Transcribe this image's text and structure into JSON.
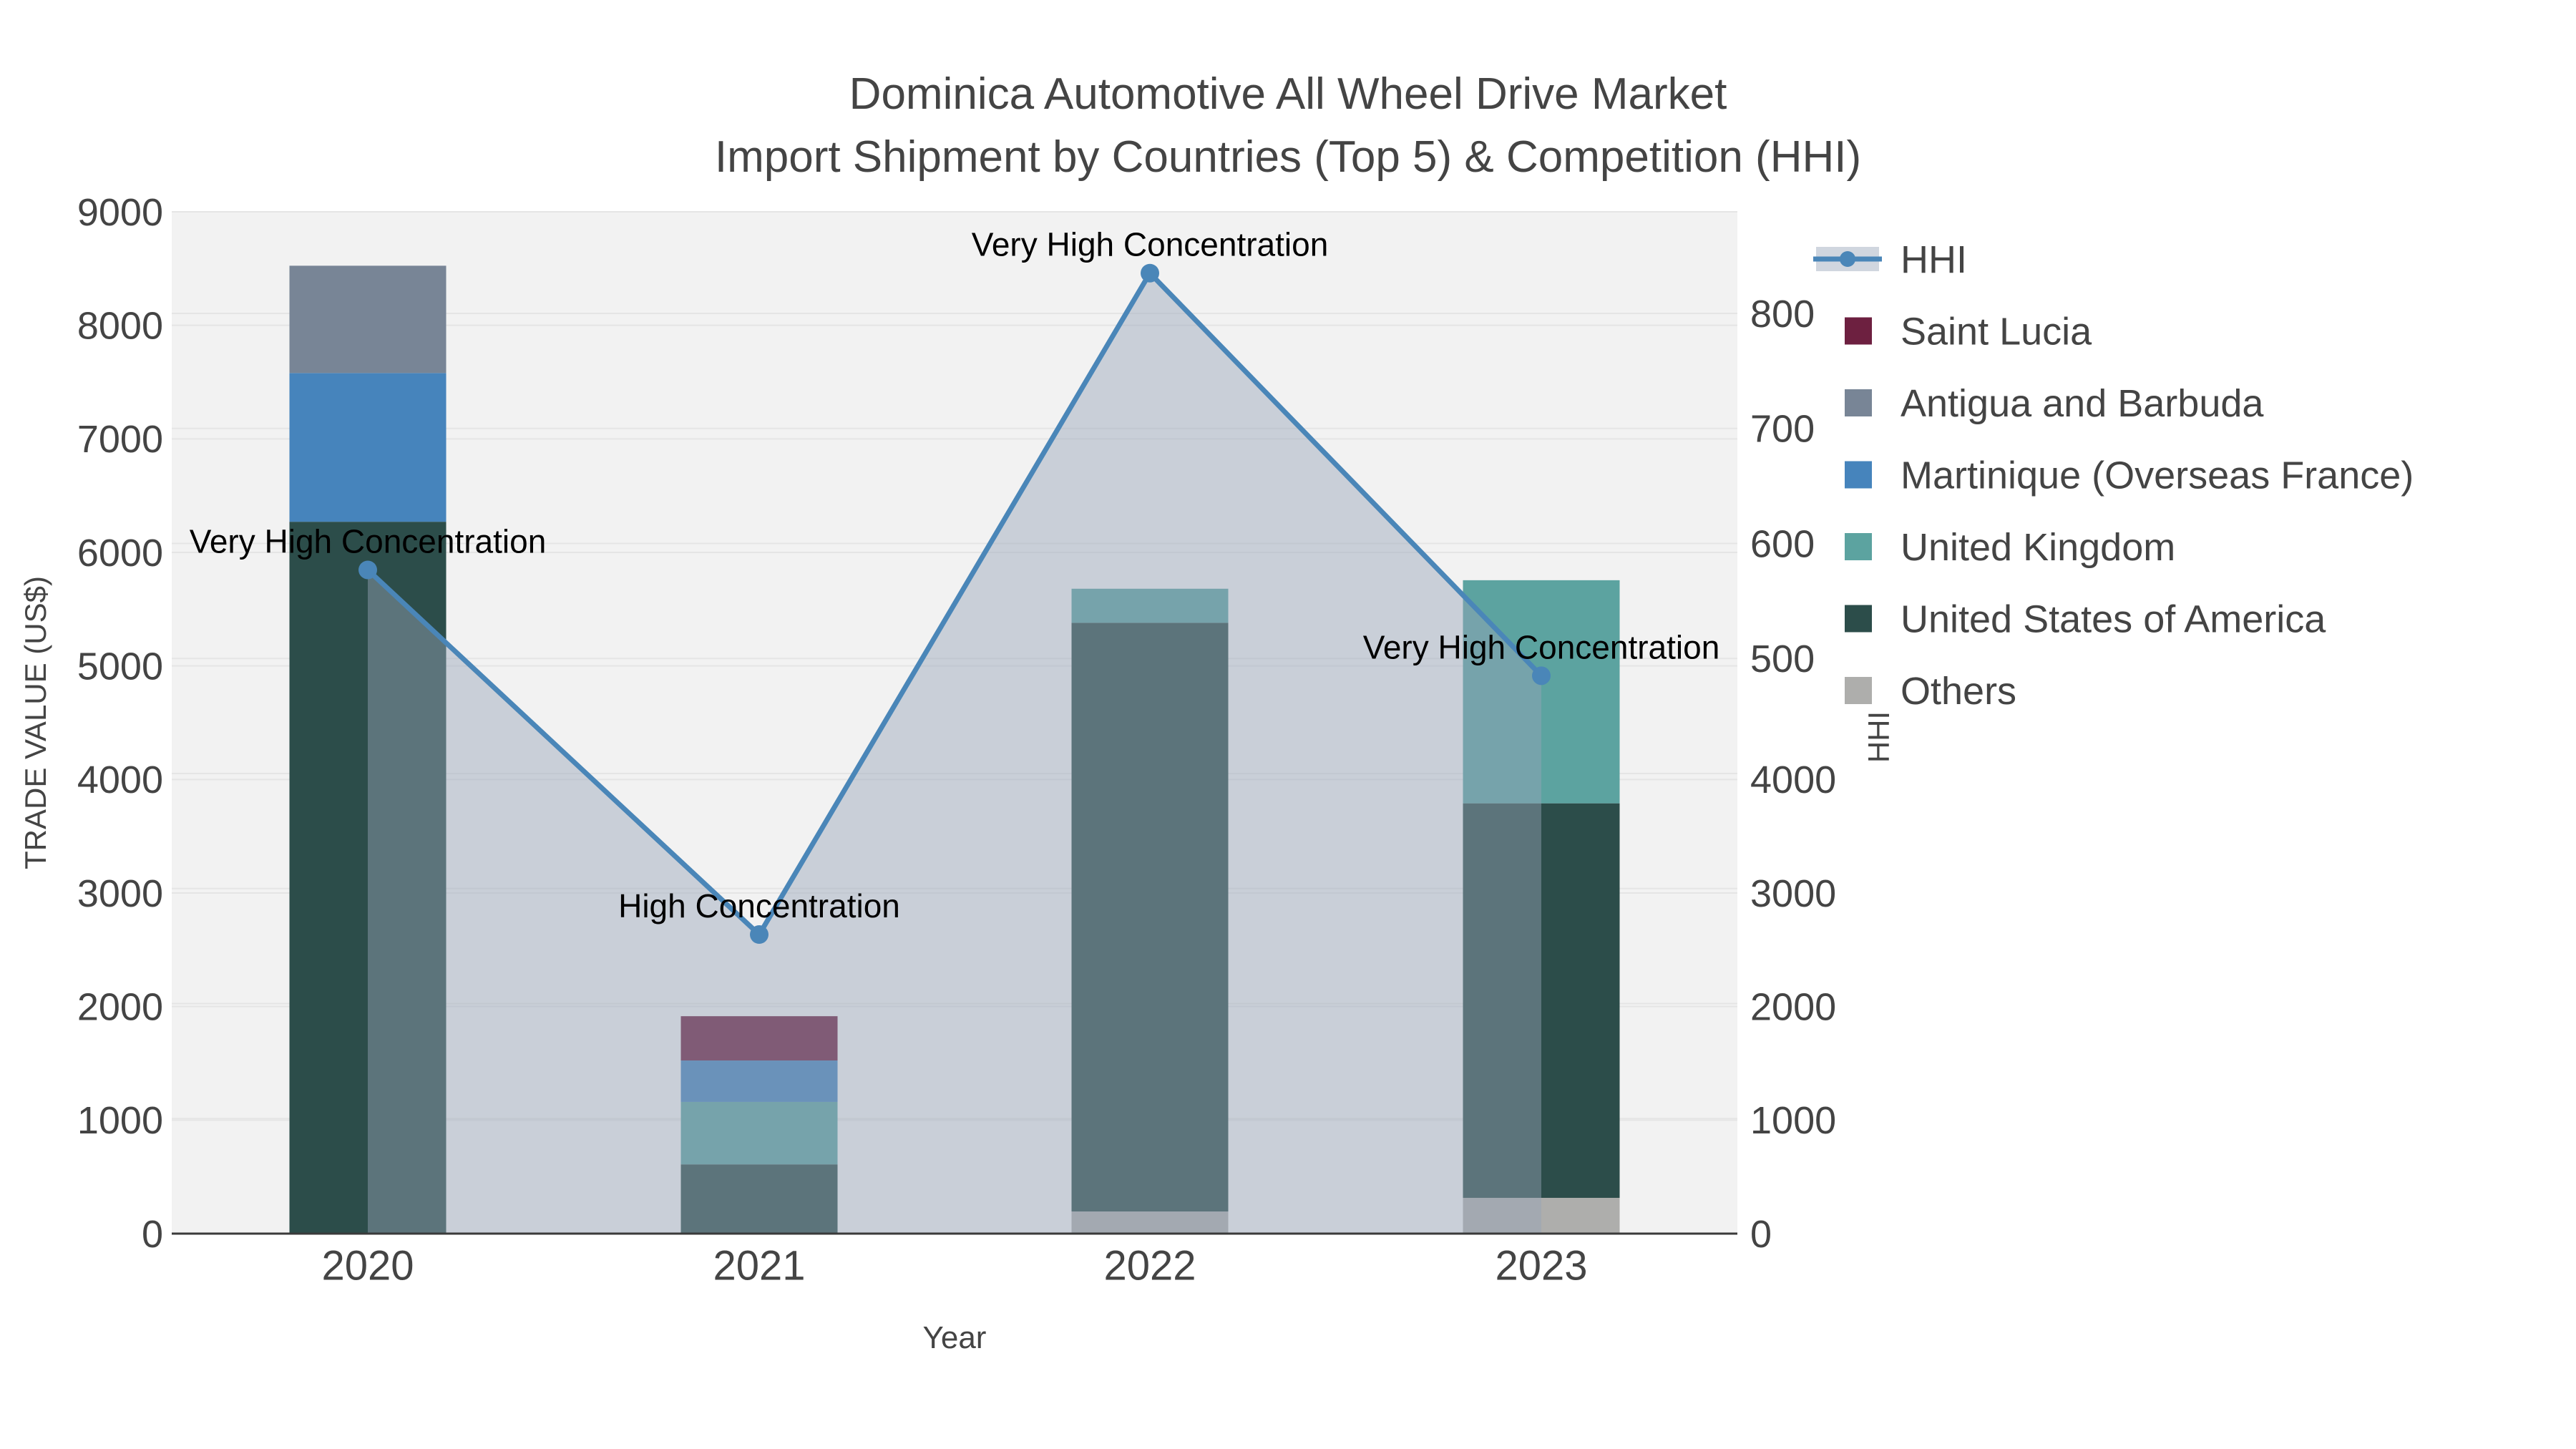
{
  "chart_data": {
    "type": "combo-stacked-bar-line",
    "title_line1": "Dominica Automotive All Wheel Drive Market",
    "title_line2": "Import Shipment by Countries (Top 5) & Competition (HHI)",
    "categories": [
      "2020",
      "2021",
      "2022",
      "2023"
    ],
    "x_axis": {
      "title": "Year"
    },
    "left_axis": {
      "title": "TRADE VALUE (US$)",
      "ticks": [
        0,
        1000,
        2000,
        3000,
        4000,
        5000,
        6000,
        7000,
        8000,
        9000
      ],
      "range": [
        0,
        9000
      ]
    },
    "right_axis": {
      "title": "HHI",
      "hhi_tick_labels": [
        800,
        700,
        600,
        500
      ],
      "trade_tick_labels": [
        4000,
        3000,
        2000,
        1000,
        0
      ],
      "hhi_range_units_per_px": "100 units per 160.75px, zero at plot bottom"
    },
    "stack_order_bottom_to_top": [
      "Others",
      "United States of America",
      "United Kingdom",
      "Martinique (Overseas France)",
      "Antigua and Barbuda",
      "Saint Lucia"
    ],
    "series": [
      {
        "name": "Saint Lucia",
        "color": "#6D2040",
        "values": [
          0,
          390,
          0,
          0
        ]
      },
      {
        "name": "Antigua and Barbuda",
        "color": "#788596",
        "values": [
          945,
          0,
          0,
          0
        ]
      },
      {
        "name": "Martinique (Overseas France)",
        "color": "#4684BC",
        "values": [
          1310,
          365,
          0,
          0
        ]
      },
      {
        "name": "United Kingdom",
        "color": "#5CA3A0",
        "values": [
          0,
          550,
          300,
          1965
        ]
      },
      {
        "name": "United States of America",
        "color": "#2C4D4A",
        "values": [
          6270,
          610,
          5185,
          3475
        ]
      },
      {
        "name": "Others",
        "color": "#AEAEAC",
        "values": [
          0,
          0,
          195,
          315
        ]
      }
    ],
    "bar_totals": [
      8525,
      1915,
      5680,
      5755
    ],
    "hhi": {
      "name": "HHI",
      "color": "#4A86B8",
      "area_color": "rgba(150,163,183,0.45)",
      "values": [
        577,
        260,
        835,
        485
      ]
    },
    "annotations": [
      {
        "category": "2020",
        "text": "Very High Concentration"
      },
      {
        "category": "2021",
        "text": "High Concentration"
      },
      {
        "category": "2022",
        "text": "Very High Concentration"
      },
      {
        "category": "2023",
        "text": "Very High Concentration"
      }
    ],
    "legend": [
      {
        "name": "HHI",
        "type": "line",
        "color": "#4A86B8"
      },
      {
        "name": "Saint Lucia",
        "type": "swatch",
        "color": "#6D2040"
      },
      {
        "name": "Antigua and Barbuda",
        "type": "swatch",
        "color": "#788596"
      },
      {
        "name": "Martinique (Overseas France)",
        "type": "swatch",
        "color": "#4684BC"
      },
      {
        "name": "United Kingdom",
        "type": "swatch",
        "color": "#5CA3A0"
      },
      {
        "name": "United States of America",
        "type": "swatch",
        "color": "#2C4D4A"
      },
      {
        "name": "Others",
        "type": "swatch",
        "color": "#AEAEAC"
      }
    ],
    "colors": {
      "plot_background": "#F2F2F2",
      "page_background": "#FFFFFF",
      "gridline": "#E5E5E5",
      "axis_line": "#3A3A3A",
      "tick_text": "#444444",
      "annotation_text": "#000000"
    },
    "layout_hints": {
      "grid": "horizontal only, two faint families",
      "legend_position": "right",
      "bar_area_overlap": "HHI area drawn above bars with transparency"
    }
  }
}
